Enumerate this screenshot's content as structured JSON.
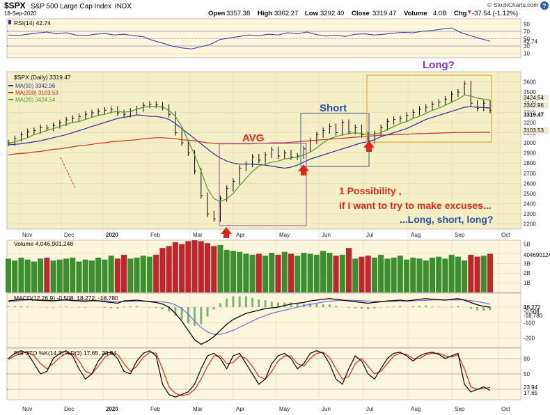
{
  "header": {
    "symbol": "$SPX",
    "name": "S&P 500 Large Cap Index",
    "exchange": "INDX",
    "date": "18-Sep-2020",
    "open_label": "Open",
    "open": "3357.38",
    "high_label": "High",
    "high": "3362.27",
    "low_label": "Low",
    "low": "3292.40",
    "close_label": "Close",
    "close": "3319.47",
    "volume_label": "Volume",
    "volume": "4.0B",
    "chg_label": "Chg",
    "chg": "-37.54 (-1.12%)",
    "chg_icon": "down-triangle-icon",
    "watermark": "© StockCharts.com",
    "help_icon": "help-icon"
  },
  "colors": {
    "price_bg": "#f5efc6",
    "panel_bg": "#fbf6dc",
    "candle": "#000000",
    "ma50": "#27309c",
    "ma200": "#cf2a1d",
    "ma20": "#4c9a2a",
    "vol_up": "#3c8f2e",
    "vol_down": "#c0272d",
    "annot_red": "#e0261b",
    "annot_blue": "#2a4ea0",
    "annot_purple": "#8b2fc9",
    "box_purple": "#a06aa8",
    "box_blue": "#5a7296",
    "box_orange": "#e8a23a"
  },
  "chart_data": [
    {
      "type": "line",
      "title": "RSI(14) 42.74",
      "legend": [
        {
          "label": "RSI(14) 42.74"
        }
      ],
      "y_ticks": [
        "90",
        "70",
        "50",
        "30",
        "10"
      ],
      "last_value_label": "42.74",
      "ylim": [
        0,
        100
      ],
      "levels": [
        70,
        50,
        30
      ],
      "series": [
        {
          "name": "RSI(14)",
          "values": [
            60,
            58,
            62,
            65,
            68,
            63,
            66,
            60,
            58,
            62,
            64,
            60,
            62,
            58,
            55,
            45,
            38,
            30,
            25,
            22,
            28,
            35,
            48,
            52,
            56,
            60,
            58,
            62,
            60,
            66,
            63,
            68,
            61,
            57,
            59,
            56,
            62,
            63,
            60,
            62,
            65,
            67,
            66,
            70,
            72,
            76,
            79,
            66,
            58,
            50,
            43
          ]
        }
      ]
    },
    {
      "type": "line",
      "title": "$SPX (Daily) 3319.47",
      "legend": [
        {
          "label": "$SPX (Daily) 3319.47"
        },
        {
          "label": "MA(50) 3342.96"
        },
        {
          "label": "MA(200) 3103.53"
        },
        {
          "label": "MA(20) 3424.54"
        }
      ],
      "ylim": [
        2150,
        3700
      ],
      "y_ticks": [
        "3600",
        "3500",
        "3400",
        "3300",
        "3200",
        "3100",
        "3000",
        "2900",
        "2800",
        "2700",
        "2600",
        "2500",
        "2400",
        "2300",
        "2200"
      ],
      "y_tick_values": [
        3600,
        3500,
        3400,
        3300,
        3200,
        3100,
        3000,
        2900,
        2800,
        2700,
        2600,
        2500,
        2400,
        2300,
        2200
      ],
      "last_value_labels": [
        "3424.54",
        "3342.96",
        "3319.47",
        "3103.53"
      ],
      "x_ticks": [
        "Nov",
        "Dec",
        "2020",
        "Feb",
        "Mar",
        "Apr",
        "May",
        "Jun",
        "Jul",
        "Aug",
        "Sep",
        "Oct"
      ],
      "series": [
        {
          "name": "$SPX",
          "values": [
            3000,
            3040,
            3080,
            3110,
            3120,
            3150,
            3145,
            3170,
            3195,
            3225,
            3240,
            3260,
            3280,
            3295,
            3310,
            3320,
            3330,
            3295,
            3280,
            3310,
            3335,
            3370,
            3380,
            3372,
            3350,
            3280,
            3100,
            3000,
            2900,
            2720,
            2480,
            2300,
            2250,
            2450,
            2550,
            2620,
            2750,
            2790,
            2860,
            2830,
            2880,
            2930,
            2870,
            2900,
            2860,
            2870,
            2940,
            3020,
            3080,
            3120,
            3160,
            3100,
            3200,
            3110,
            3150,
            3080,
            3020,
            3090,
            3150,
            3210,
            3230,
            3240,
            3270,
            3300,
            3330,
            3350,
            3380,
            3400,
            3430,
            3480,
            3500,
            3580,
            3390,
            3340,
            3390,
            3320
          ]
        },
        {
          "name": "MA(50)",
          "values": [
            2980,
            2985,
            2990,
            3000,
            3010,
            3020,
            3035,
            3050,
            3065,
            3080,
            3100,
            3120,
            3140,
            3160,
            3180,
            3200,
            3220,
            3240,
            3250,
            3262,
            3275,
            3270,
            3260,
            3260,
            3250,
            3230,
            3190,
            3140,
            3090,
            3040,
            2990,
            2940,
            2890,
            2850,
            2820,
            2800,
            2790,
            2790,
            2790,
            2785,
            2780,
            2770,
            2760,
            2750,
            2760,
            2780,
            2810,
            2840,
            2860,
            2880,
            2900,
            2920,
            2940,
            2960,
            2980,
            3000,
            3010,
            3030,
            3060,
            3080,
            3100,
            3120,
            3140,
            3170,
            3200,
            3230,
            3250,
            3270,
            3290,
            3310,
            3330,
            3350,
            3355,
            3350,
            3348,
            3343
          ]
        },
        {
          "name": "MA(200)",
          "values": [
            2880,
            2890,
            2895,
            2900,
            2910,
            2915,
            2925,
            2935,
            2940,
            2950,
            2960,
            2970,
            2975,
            2985,
            2995,
            3000,
            3010,
            3015,
            3020,
            3025,
            3030,
            3040,
            3045,
            3050,
            3050,
            3045,
            3040,
            3030,
            3025,
            3020,
            3010,
            3000,
            2995,
            2990,
            2990,
            2990,
            2990,
            2990,
            2990,
            2995,
            2995,
            3000,
            3000,
            3000,
            3005,
            3010,
            3015,
            3020,
            3025,
            3030,
            3035,
            3040,
            3045,
            3050,
            3055,
            3060,
            3065,
            3070,
            3075,
            3078,
            3080,
            3082,
            3085,
            3088,
            3090,
            3092,
            3094,
            3096,
            3098,
            3100,
            3101,
            3102,
            3102,
            3103,
            3103,
            3103
          ]
        },
        {
          "name": "MA(20)",
          "values": [
            2990,
            3010,
            3030,
            3050,
            3080,
            3100,
            3120,
            3140,
            3160,
            3180,
            3200,
            3210,
            3230,
            3250,
            3270,
            3280,
            3300,
            3310,
            3300,
            3310,
            3330,
            3350,
            3360,
            3360,
            3350,
            3320,
            3260,
            3160,
            3020,
            2880,
            2720,
            2550,
            2450,
            2420,
            2450,
            2500,
            2580,
            2650,
            2720,
            2770,
            2790,
            2810,
            2820,
            2840,
            2850,
            2860,
            2880,
            2910,
            2950,
            3000,
            3040,
            3060,
            3080,
            3090,
            3100,
            3090,
            3080,
            3085,
            3100,
            3130,
            3160,
            3190,
            3210,
            3240,
            3260,
            3290,
            3320,
            3340,
            3370,
            3400,
            3430,
            3470,
            3460,
            3440,
            3430,
            3424
          ]
        }
      ]
    },
    {
      "type": "bar",
      "title": "Volume 4,046,901,248",
      "legend": [
        {
          "label": "Volume 4,046,901,248"
        }
      ],
      "y_ticks": [
        "5B",
        "4B",
        "3B",
        "2B",
        "1B"
      ],
      "y_tick_values": [
        5,
        4,
        3,
        2,
        1
      ],
      "last_value_label": "4046901248",
      "ylim": [
        0,
        5.4
      ],
      "series": [
        {
          "name": "Volume",
          "values": [
            3.5,
            3.3,
            3.6,
            3.4,
            3.2,
            3.5,
            3.6,
            3.3,
            3.4,
            3.5,
            3.6,
            3.2,
            3.4,
            3.3,
            3.6,
            3.4,
            3.8,
            3.5,
            3.9,
            3.5,
            3.6,
            3.8,
            3.7,
            3.9,
            4.6,
            4.8,
            5.2,
            5.0,
            5.3,
            5.4,
            5.3,
            5.1,
            4.8,
            4.9,
            4.4,
            4.3,
            4.2,
            4.0,
            3.9,
            4.0,
            3.8,
            4.1,
            3.9,
            4.2,
            4.0,
            3.8,
            4.1,
            4.0,
            3.9,
            4.3,
            4.1,
            3.8,
            3.9,
            4.6,
            3.5,
            3.7,
            3.8,
            3.6,
            3.9,
            3.5,
            3.6,
            3.8,
            3.4,
            3.6,
            3.5,
            3.3,
            3.6,
            3.7,
            3.5,
            3.9,
            3.7,
            3.3,
            3.9,
            3.7,
            3.8,
            4.0
          ]
        }
      ]
    },
    {
      "type": "line",
      "title": "MACD(12,26,9) -0.508, 18.272, -18.780",
      "legend": [
        {
          "label": "MACD(12,26,9) -0.508, 18.272, -18.780"
        }
      ],
      "y_ticks": [
        "0",
        "-100",
        "-200"
      ],
      "y_tick_values": [
        0,
        -100,
        -200
      ],
      "last_value_labels": [
        "18.272",
        "-0.508",
        "-18.780"
      ],
      "ylim": [
        -260,
        90
      ],
      "series": [
        {
          "name": "MACD",
          "values": [
            40,
            45,
            48,
            50,
            46,
            44,
            42,
            40,
            45,
            48,
            42,
            40,
            38,
            42,
            40,
            35,
            30,
            25,
            40,
            42,
            45,
            40,
            35,
            30,
            20,
            0,
            -40,
            -90,
            -150,
            -210,
            -240,
            -220,
            -190,
            -150,
            -110,
            -80,
            -60,
            -40,
            -30,
            -20,
            -10,
            -5,
            0,
            10,
            20,
            25,
            30,
            40,
            45,
            50,
            55,
            50,
            45,
            40,
            35,
            30,
            25,
            30,
            35,
            40,
            42,
            45,
            40,
            45,
            50,
            55,
            50,
            48,
            45,
            50,
            55,
            45,
            30,
            15,
            5,
            -0.5
          ]
        },
        {
          "name": "Signal",
          "values": [
            35,
            38,
            42,
            45,
            46,
            45,
            44,
            43,
            43,
            44,
            44,
            43,
            42,
            42,
            41,
            40,
            38,
            36,
            36,
            37,
            38,
            39,
            38,
            37,
            34,
            28,
            15,
            -10,
            -45,
            -90,
            -130,
            -160,
            -175,
            -175,
            -165,
            -150,
            -130,
            -110,
            -90,
            -70,
            -55,
            -40,
            -30,
            -20,
            -10,
            0,
            10,
            18,
            25,
            32,
            38,
            42,
            44,
            44,
            43,
            41,
            39,
            38,
            37,
            37,
            38,
            39,
            39,
            40,
            42,
            44,
            46,
            46,
            46,
            46,
            47,
            46,
            42,
            36,
            28,
            18
          ]
        }
      ]
    },
    {
      "type": "line",
      "title": "Full STO %K(14,3) %D(3) 17.65, 23.94",
      "legend": [
        {
          "label": "Full STO %K(14,3) %D(3) 17.65, 23.94"
        }
      ],
      "y_ticks": [
        "80",
        "50",
        "20"
      ],
      "y_tick_values": [
        80,
        50,
        20
      ],
      "last_value_labels": [
        "23.94",
        "17.65"
      ],
      "ylim": [
        0,
        100
      ],
      "levels": [
        80,
        50,
        20
      ],
      "series": [
        {
          "name": "%K",
          "values": [
            80,
            90,
            95,
            90,
            70,
            50,
            55,
            80,
            90,
            95,
            85,
            60,
            40,
            50,
            75,
            90,
            92,
            80,
            55,
            50,
            75,
            90,
            95,
            85,
            30,
            10,
            5,
            10,
            15,
            30,
            60,
            85,
            90,
            80,
            60,
            85,
            90,
            70,
            50,
            30,
            40,
            70,
            85,
            90,
            80,
            60,
            70,
            90,
            95,
            90,
            70,
            40,
            30,
            60,
            85,
            75,
            50,
            40,
            60,
            80,
            90,
            92,
            85,
            75,
            85,
            90,
            92,
            88,
            80,
            85,
            90,
            30,
            15,
            20,
            25,
            17.65
          ]
        },
        {
          "name": "%D",
          "values": [
            78,
            85,
            90,
            92,
            85,
            70,
            60,
            70,
            82,
            90,
            90,
            75,
            55,
            50,
            65,
            82,
            90,
            88,
            70,
            55,
            65,
            82,
            92,
            90,
            60,
            25,
            12,
            8,
            10,
            20,
            40,
            65,
            85,
            85,
            70,
            72,
            85,
            80,
            65,
            45,
            40,
            55,
            75,
            85,
            85,
            70,
            65,
            80,
            90,
            92,
            82,
            60,
            40,
            45,
            70,
            80,
            65,
            50,
            55,
            70,
            85,
            90,
            88,
            80,
            80,
            87,
            90,
            90,
            85,
            83,
            87,
            60,
            25,
            20,
            22,
            23.94
          ]
        }
      ],
      "x_ticks": [
        "Nov",
        "Dec",
        "2020",
        "Feb",
        "Mar",
        "Apr",
        "May",
        "Jun",
        "Jul",
        "Aug",
        "Sep",
        "Oct"
      ]
    }
  ],
  "annotations": {
    "avg": "AVG",
    "short": "Short",
    "long_q": "Long?",
    "note_line1": "1 Possibility ,",
    "note_line2": "if I want to try to make excuses...",
    "note_line3": "...Long, short, long?"
  }
}
